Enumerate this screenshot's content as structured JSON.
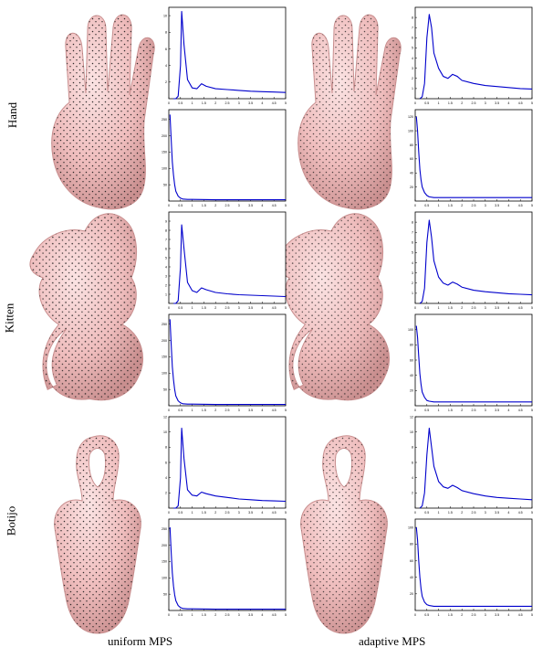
{
  "figure": {
    "rows": [
      {
        "label": "Hand",
        "shape": "hand"
      },
      {
        "label": "Kitten",
        "shape": "kitten"
      },
      {
        "label": "Botijo",
        "shape": "botijo"
      }
    ],
    "columns": [
      {
        "caption": "uniform MPS"
      },
      {
        "caption": "adaptive MPS"
      }
    ]
  },
  "colors": {
    "mesh": "#f1c3c3",
    "mesh_shade": "#c98f8f",
    "points": "#1a1a1a",
    "curve": "#0000cc"
  },
  "chart_data": [
    {
      "row": "Hand",
      "column": "uniform MPS",
      "kind": "top",
      "type": "line",
      "xlim": [
        0,
        5
      ],
      "ylim": [
        0,
        11
      ],
      "xticks": [
        "0",
        "0.5",
        "1",
        "1.5",
        "2",
        "2.5",
        "3",
        "3.5",
        "4",
        "4.5",
        "5"
      ],
      "yticks": [
        "2",
        "4",
        "6",
        "8",
        "10"
      ],
      "x": [
        0.2,
        0.3,
        0.4,
        0.5,
        0.55,
        0.65,
        0.8,
        1.0,
        1.2,
        1.4,
        1.6,
        2,
        2.5,
        3,
        3.5,
        4,
        4.5,
        5
      ],
      "y": [
        0,
        0,
        0.3,
        4,
        10.5,
        6.5,
        2.3,
        1.3,
        1.2,
        1.8,
        1.5,
        1.2,
        1.1,
        1.0,
        0.9,
        0.85,
        0.8,
        0.75
      ]
    },
    {
      "row": "Hand",
      "column": "uniform MPS",
      "kind": "bottom",
      "type": "line",
      "xlim": [
        0,
        5
      ],
      "ylim": [
        0,
        280
      ],
      "xticks": [
        "0",
        "0.5",
        "1",
        "1.5",
        "2",
        "2.5",
        "3",
        "3.5",
        "4",
        "4.5",
        "5"
      ],
      "yticks": [
        "50",
        "100",
        "150",
        "200",
        "250"
      ],
      "x": [
        0.05,
        0.1,
        0.15,
        0.2,
        0.25,
        0.3,
        0.4,
        0.5,
        0.6,
        0.8,
        1,
        2,
        3,
        4,
        5
      ],
      "y": [
        265,
        190,
        120,
        80,
        50,
        30,
        15,
        9,
        6,
        5,
        5,
        4,
        4,
        4,
        4
      ]
    },
    {
      "row": "Hand",
      "column": "adaptive MPS",
      "kind": "top",
      "type": "line",
      "xlim": [
        0,
        5
      ],
      "ylim": [
        0,
        9
      ],
      "xticks": [
        "0",
        "0.5",
        "1",
        "1.5",
        "2",
        "2.5",
        "3",
        "3.5",
        "4",
        "4.5",
        "5"
      ],
      "yticks": [
        "1",
        "2",
        "3",
        "4",
        "5",
        "6",
        "7",
        "8"
      ],
      "x": [
        0.2,
        0.3,
        0.4,
        0.5,
        0.6,
        0.7,
        0.8,
        1.0,
        1.2,
        1.4,
        1.6,
        1.8,
        2,
        2.5,
        3,
        3.5,
        4,
        4.5,
        5
      ],
      "y": [
        0,
        0.2,
        1.5,
        6,
        8.3,
        7,
        4.5,
        3,
        2.2,
        2,
        2.4,
        2.2,
        1.8,
        1.5,
        1.3,
        1.2,
        1.1,
        1.0,
        0.95
      ]
    },
    {
      "row": "Hand",
      "column": "adaptive MPS",
      "kind": "bottom",
      "type": "line",
      "xlim": [
        0,
        5
      ],
      "ylim": [
        0,
        130
      ],
      "xticks": [
        "0",
        "0.5",
        "1",
        "1.5",
        "2",
        "2.5",
        "3",
        "3.5",
        "4",
        "4.5",
        "5"
      ],
      "yticks": [
        "20",
        "40",
        "60",
        "80",
        "100",
        "120"
      ],
      "x": [
        0.05,
        0.1,
        0.15,
        0.2,
        0.25,
        0.3,
        0.4,
        0.5,
        0.6,
        0.8,
        1,
        2,
        3,
        4,
        5
      ],
      "y": [
        120,
        100,
        70,
        45,
        30,
        20,
        12,
        8,
        6,
        5,
        5,
        5,
        5,
        5,
        5
      ]
    },
    {
      "row": "Kitten",
      "column": "uniform MPS",
      "kind": "top",
      "type": "line",
      "xlim": [
        0,
        5
      ],
      "ylim": [
        0,
        10
      ],
      "xticks": [
        "0",
        "0.5",
        "1",
        "1.5",
        "2",
        "2.5",
        "3",
        "3.5",
        "4",
        "4.5",
        "5"
      ],
      "yticks": [
        "1",
        "2",
        "3",
        "4",
        "5",
        "6",
        "7",
        "8",
        "9"
      ],
      "x": [
        0.2,
        0.3,
        0.4,
        0.5,
        0.55,
        0.65,
        0.8,
        1.0,
        1.2,
        1.4,
        1.6,
        2,
        2.5,
        3,
        3.5,
        4,
        4.5,
        5
      ],
      "y": [
        0,
        0,
        0.3,
        4,
        8.6,
        6,
        2.3,
        1.4,
        1.2,
        1.7,
        1.5,
        1.2,
        1.05,
        0.95,
        0.9,
        0.85,
        0.8,
        0.75
      ]
    },
    {
      "row": "Kitten",
      "column": "uniform MPS",
      "kind": "bottom",
      "type": "line",
      "xlim": [
        0,
        5
      ],
      "ylim": [
        0,
        280
      ],
      "xticks": [
        "0",
        "0.5",
        "1",
        "1.5",
        "2",
        "2.5",
        "3",
        "3.5",
        "4",
        "4.5",
        "5"
      ],
      "yticks": [
        "50",
        "100",
        "150",
        "200",
        "250"
      ],
      "x": [
        0.05,
        0.1,
        0.15,
        0.2,
        0.25,
        0.3,
        0.4,
        0.5,
        0.6,
        0.8,
        1,
        2,
        3,
        4,
        5
      ],
      "y": [
        265,
        190,
        120,
        80,
        50,
        30,
        15,
        9,
        6,
        5,
        5,
        4,
        4,
        4,
        4
      ]
    },
    {
      "row": "Kitten",
      "column": "adaptive MPS",
      "kind": "top",
      "type": "line",
      "xlim": [
        0,
        5
      ],
      "ylim": [
        0,
        9
      ],
      "xticks": [
        "0",
        "0.5",
        "1",
        "1.5",
        "2",
        "2.5",
        "3",
        "3.5",
        "4",
        "4.5",
        "5"
      ],
      "yticks": [
        "1",
        "2",
        "3",
        "4",
        "5",
        "6",
        "7",
        "8"
      ],
      "x": [
        0.2,
        0.3,
        0.4,
        0.5,
        0.6,
        0.7,
        0.8,
        1.0,
        1.2,
        1.4,
        1.6,
        1.8,
        2,
        2.5,
        3,
        3.5,
        4,
        4.5,
        5
      ],
      "y": [
        0,
        0.2,
        1.5,
        6,
        8.2,
        6.5,
        4.2,
        2.6,
        2,
        1.8,
        2.1,
        1.9,
        1.6,
        1.3,
        1.15,
        1.05,
        0.95,
        0.9,
        0.85
      ]
    },
    {
      "row": "Kitten",
      "column": "adaptive MPS",
      "kind": "bottom",
      "type": "line",
      "xlim": [
        0,
        5
      ],
      "ylim": [
        0,
        120
      ],
      "xticks": [
        "0",
        "0.5",
        "1",
        "1.5",
        "2",
        "2.5",
        "3",
        "3.5",
        "4",
        "4.5",
        "5"
      ],
      "yticks": [
        "20",
        "40",
        "60",
        "80",
        "100"
      ],
      "x": [
        0.05,
        0.1,
        0.15,
        0.2,
        0.25,
        0.3,
        0.4,
        0.5,
        0.6,
        0.8,
        1,
        2,
        3,
        4,
        5
      ],
      "y": [
        105,
        90,
        65,
        42,
        28,
        18,
        11,
        7,
        6,
        5,
        5,
        5,
        5,
        5,
        5
      ]
    },
    {
      "row": "Botijo",
      "column": "uniform MPS",
      "kind": "top",
      "type": "line",
      "xlim": [
        0,
        5
      ],
      "ylim": [
        0,
        12
      ],
      "xticks": [
        "0",
        "0.5",
        "1",
        "1.5",
        "2",
        "2.5",
        "3",
        "3.5",
        "4",
        "4.5",
        "5"
      ],
      "yticks": [
        "2",
        "4",
        "6",
        "8",
        "10",
        "12"
      ],
      "x": [
        0.2,
        0.3,
        0.4,
        0.5,
        0.55,
        0.65,
        0.8,
        1.0,
        1.2,
        1.4,
        1.6,
        2,
        2.5,
        3,
        3.5,
        4,
        4.5,
        5
      ],
      "y": [
        0,
        0,
        0.3,
        4,
        10.5,
        6.5,
        2.4,
        1.7,
        1.6,
        2.1,
        1.9,
        1.6,
        1.4,
        1.2,
        1.1,
        1.0,
        0.95,
        0.9
      ]
    },
    {
      "row": "Botijo",
      "column": "uniform MPS",
      "kind": "bottom",
      "type": "line",
      "xlim": [
        0,
        5
      ],
      "ylim": [
        0,
        280
      ],
      "xticks": [
        "0",
        "0.5",
        "1",
        "1.5",
        "2",
        "2.5",
        "3",
        "3.5",
        "4",
        "4.5",
        "5"
      ],
      "yticks": [
        "50",
        "100",
        "150",
        "200",
        "250"
      ],
      "x": [
        0.05,
        0.1,
        0.15,
        0.2,
        0.25,
        0.3,
        0.4,
        0.5,
        0.6,
        0.8,
        1,
        2,
        3,
        4,
        5
      ],
      "y": [
        255,
        180,
        115,
        75,
        48,
        30,
        15,
        9,
        6,
        5,
        5,
        4,
        4,
        4,
        4
      ]
    },
    {
      "row": "Botijo",
      "column": "adaptive MPS",
      "kind": "top",
      "type": "line",
      "xlim": [
        0,
        5
      ],
      "ylim": [
        0,
        12
      ],
      "xticks": [
        "0",
        "0.5",
        "1",
        "1.5",
        "2",
        "2.5",
        "3",
        "3.5",
        "4",
        "4.5",
        "5"
      ],
      "yticks": [
        "2",
        "4",
        "6",
        "8",
        "10",
        "12"
      ],
      "x": [
        0.2,
        0.3,
        0.4,
        0.5,
        0.6,
        0.7,
        0.8,
        1.0,
        1.2,
        1.4,
        1.6,
        1.8,
        2,
        2.5,
        3,
        3.5,
        4,
        4.5,
        5
      ],
      "y": [
        0,
        0.3,
        2,
        7,
        10.5,
        8,
        5.5,
        3.5,
        2.8,
        2.6,
        3,
        2.7,
        2.3,
        1.9,
        1.6,
        1.4,
        1.3,
        1.2,
        1.1
      ]
    },
    {
      "row": "Botijo",
      "column": "adaptive MPS",
      "kind": "bottom",
      "type": "line",
      "xlim": [
        0,
        5
      ],
      "ylim": [
        0,
        110
      ],
      "xticks": [
        "0",
        "0.5",
        "1",
        "1.5",
        "2",
        "2.5",
        "3",
        "3.5",
        "4",
        "4.5",
        "5"
      ],
      "yticks": [
        "20",
        "40",
        "60",
        "80",
        "100"
      ],
      "x": [
        0.05,
        0.1,
        0.15,
        0.2,
        0.25,
        0.3,
        0.4,
        0.5,
        0.6,
        0.8,
        1,
        2,
        3,
        4,
        5
      ],
      "y": [
        100,
        85,
        60,
        40,
        26,
        17,
        10,
        7,
        6,
        5,
        5,
        5,
        5,
        5,
        5
      ]
    }
  ]
}
